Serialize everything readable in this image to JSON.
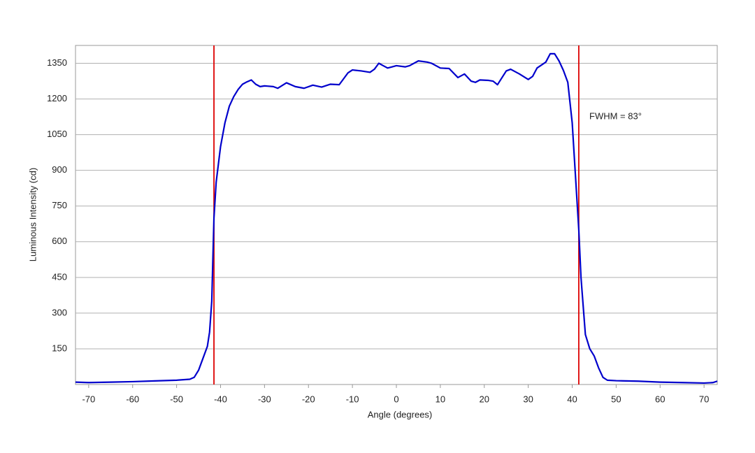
{
  "chart_data": {
    "type": "line",
    "xlabel": "Angle (degrees)",
    "ylabel": "Luminous Intensity (cd)",
    "annotation": "FWHM = 83°",
    "x": [
      -73,
      -70,
      -65,
      -60,
      -55,
      -50,
      -47,
      -46,
      -45,
      -44,
      -43,
      -42.5,
      -42,
      -41.5,
      -41,
      -40,
      -39,
      -38,
      -37,
      -36,
      -35,
      -34,
      -33,
      -32,
      -31,
      -30,
      -28,
      -27,
      -25,
      -23,
      -21,
      -19,
      -17,
      -15,
      -13,
      -11,
      -10,
      -8,
      -6,
      -5,
      -4,
      -3,
      -2,
      -1,
      0,
      2,
      3,
      5,
      7,
      8,
      10,
      12,
      14,
      15.5,
      17,
      18,
      19,
      21,
      22,
      23,
      25,
      26,
      28,
      30,
      31,
      32,
      34,
      35,
      36,
      37,
      38,
      39,
      40,
      40.5,
      41,
      41.5,
      42,
      43,
      44,
      45,
      46,
      47,
      48,
      50,
      55,
      60,
      65,
      70,
      72,
      73
    ],
    "series": [
      {
        "color": "#0000cc",
        "values": [
          10,
          8,
          10,
          12,
          15,
          18,
          22,
          30,
          60,
          110,
          160,
          220,
          350,
          700,
          850,
          1000,
          1100,
          1170,
          1210,
          1240,
          1262,
          1272,
          1280,
          1262,
          1252,
          1255,
          1252,
          1245,
          1268,
          1252,
          1245,
          1258,
          1250,
          1262,
          1260,
          1310,
          1322,
          1318,
          1312,
          1325,
          1350,
          1340,
          1330,
          1335,
          1340,
          1335,
          1340,
          1360,
          1355,
          1350,
          1330,
          1328,
          1290,
          1305,
          1275,
          1270,
          1280,
          1278,
          1275,
          1260,
          1318,
          1325,
          1305,
          1282,
          1295,
          1330,
          1355,
          1390,
          1390,
          1360,
          1320,
          1270,
          1100,
          950,
          800,
          650,
          450,
          210,
          150,
          120,
          70,
          30,
          18,
          16,
          14,
          10,
          8,
          6,
          8,
          14
        ]
      }
    ],
    "vlines": [
      -41.5,
      41.5
    ],
    "vline_color": "#dd0000",
    "xlim": [
      -73,
      73
    ],
    "xticks": [
      -70,
      -60,
      -50,
      -40,
      -30,
      -20,
      -10,
      0,
      10,
      20,
      30,
      40,
      50,
      60,
      70
    ],
    "ylim": [
      0,
      1425
    ],
    "yticks": [
      150,
      300,
      450,
      600,
      750,
      900,
      1050,
      1200,
      1350
    ],
    "grid": true
  }
}
